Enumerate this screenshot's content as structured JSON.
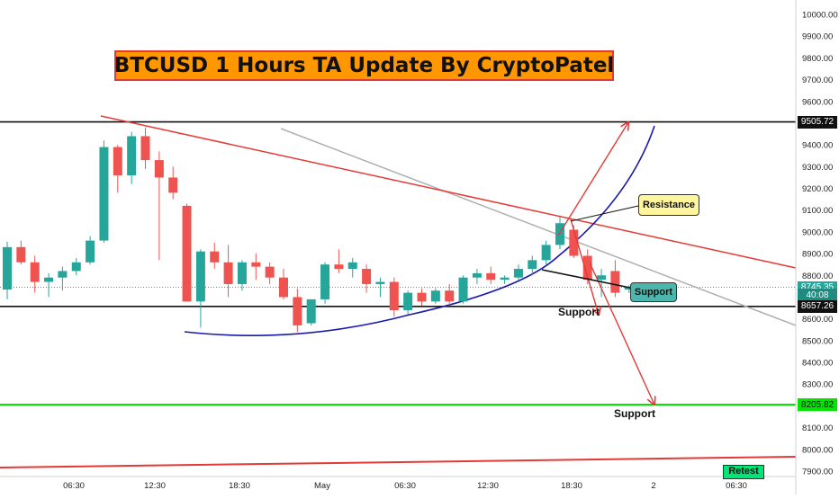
{
  "title": "BTCUSD 1 Hours TA Update By CryptoPatel",
  "annotations": {
    "resistance": "Resistance",
    "support_box": "Support",
    "support_upper": "Support",
    "support_lower": "Support",
    "retest": "Retest"
  },
  "colors": {
    "up": "#26a69a",
    "down": "#ef5350",
    "resistance_line": "#e53935",
    "curve": "#1a1aaa",
    "gray_line": "#b0b0b0",
    "support_green": "#00e600",
    "title_bg": "#ff9800"
  },
  "chart_data": {
    "type": "candlestick",
    "title": "BTCUSD 1 Hours TA Update By CryptoPatel",
    "x_tick_labels": [
      "06:30",
      "12:30",
      "18:30",
      "May",
      "06:30",
      "12:30",
      "18:30",
      "2",
      "06:30"
    ],
    "y_ticks": [
      7900,
      8000,
      8100,
      8200,
      8300,
      8400,
      8500,
      8600,
      8700,
      8800,
      8900,
      9000,
      9100,
      9200,
      9300,
      9400,
      9500,
      9600,
      9700,
      9800,
      9900,
      10000
    ],
    "y_tick_labels": [
      "7900.00",
      "8000.00",
      "8100.00",
      "8200.00",
      "8300.00",
      "8400.00",
      "8500.00",
      "8600.00",
      "8700.00",
      "8800.00",
      "8900.00",
      "9000.00",
      "9100.00",
      "9200.00",
      "9300.00",
      "9400.00",
      "9500.00",
      "9600.00",
      "9700.00",
      "9800.00",
      "9900.00",
      "10000.00"
    ],
    "ylim": [
      7880,
      10060
    ],
    "grid": false,
    "price_labels": [
      {
        "value": 9505.72,
        "text": "9505.72",
        "style": "black"
      },
      {
        "value": 8745.35,
        "text": "8745.35",
        "style": "teal"
      },
      {
        "value": 8710,
        "text": "40:08",
        "style": "teal-dark"
      },
      {
        "value": 8657.26,
        "text": "8657.26",
        "style": "black"
      },
      {
        "value": 8205.82,
        "text": "8205.82",
        "style": "green"
      }
    ],
    "horizontal_levels": [
      9505.72,
      8657.26,
      8205.82
    ],
    "current_price": 8745.35,
    "candles": [
      {
        "o": 8735,
        "h": 8955,
        "l": 8690,
        "c": 8930
      },
      {
        "o": 8930,
        "h": 8960,
        "l": 8850,
        "c": 8860
      },
      {
        "o": 8860,
        "h": 8890,
        "l": 8720,
        "c": 8770
      },
      {
        "o": 8770,
        "h": 8810,
        "l": 8700,
        "c": 8790
      },
      {
        "o": 8790,
        "h": 8840,
        "l": 8730,
        "c": 8820
      },
      {
        "o": 8820,
        "h": 8880,
        "l": 8800,
        "c": 8860
      },
      {
        "o": 8860,
        "h": 8980,
        "l": 8850,
        "c": 8960
      },
      {
        "o": 8960,
        "h": 9420,
        "l": 8950,
        "c": 9390
      },
      {
        "o": 9390,
        "h": 9400,
        "l": 9180,
        "c": 9260
      },
      {
        "o": 9260,
        "h": 9460,
        "l": 9220,
        "c": 9440
      },
      {
        "o": 9440,
        "h": 9480,
        "l": 9290,
        "c": 9330
      },
      {
        "o": 9330,
        "h": 9370,
        "l": 8870,
        "c": 9250
      },
      {
        "o": 9250,
        "h": 9300,
        "l": 9150,
        "c": 9180
      },
      {
        "o": 9120,
        "h": 9130,
        "l": 8680,
        "c": 8680
      },
      {
        "o": 8680,
        "h": 8920,
        "l": 8560,
        "c": 8910
      },
      {
        "o": 8910,
        "h": 8950,
        "l": 8830,
        "c": 8860
      },
      {
        "o": 8860,
        "h": 8940,
        "l": 8700,
        "c": 8760
      },
      {
        "o": 8760,
        "h": 8870,
        "l": 8730,
        "c": 8860
      },
      {
        "o": 8860,
        "h": 8900,
        "l": 8780,
        "c": 8840
      },
      {
        "o": 8840,
        "h": 8860,
        "l": 8760,
        "c": 8790
      },
      {
        "o": 8790,
        "h": 8830,
        "l": 8690,
        "c": 8700
      },
      {
        "o": 8700,
        "h": 8740,
        "l": 8540,
        "c": 8570
      },
      {
        "o": 8580,
        "h": 8690,
        "l": 8570,
        "c": 8690
      },
      {
        "o": 8690,
        "h": 8860,
        "l": 8670,
        "c": 8850
      },
      {
        "o": 8850,
        "h": 8920,
        "l": 8810,
        "c": 8830
      },
      {
        "o": 8830,
        "h": 8880,
        "l": 8790,
        "c": 8860
      },
      {
        "o": 8830,
        "h": 8850,
        "l": 8720,
        "c": 8760
      },
      {
        "o": 8760,
        "h": 8790,
        "l": 8700,
        "c": 8770
      },
      {
        "o": 8770,
        "h": 8790,
        "l": 8610,
        "c": 8640
      },
      {
        "o": 8640,
        "h": 8730,
        "l": 8620,
        "c": 8720
      },
      {
        "o": 8720,
        "h": 8740,
        "l": 8660,
        "c": 8680
      },
      {
        "o": 8680,
        "h": 8740,
        "l": 8670,
        "c": 8730
      },
      {
        "o": 8730,
        "h": 8760,
        "l": 8660,
        "c": 8680
      },
      {
        "o": 8680,
        "h": 8800,
        "l": 8670,
        "c": 8790
      },
      {
        "o": 8790,
        "h": 8830,
        "l": 8760,
        "c": 8810
      },
      {
        "o": 8810,
        "h": 8840,
        "l": 8760,
        "c": 8780
      },
      {
        "o": 8780,
        "h": 8800,
        "l": 8760,
        "c": 8790
      },
      {
        "o": 8790,
        "h": 8850,
        "l": 8780,
        "c": 8830
      },
      {
        "o": 8830,
        "h": 8890,
        "l": 8800,
        "c": 8870
      },
      {
        "o": 8870,
        "h": 8960,
        "l": 8850,
        "c": 8940
      },
      {
        "o": 8940,
        "h": 9070,
        "l": 8920,
        "c": 9040
      },
      {
        "o": 9010,
        "h": 9030,
        "l": 8880,
        "c": 8890
      },
      {
        "o": 8890,
        "h": 8920,
        "l": 8760,
        "c": 8780
      },
      {
        "o": 8780,
        "h": 8830,
        "l": 8700,
        "c": 8800
      },
      {
        "o": 8820,
        "h": 8870,
        "l": 8700,
        "c": 8720
      },
      {
        "o": 8735,
        "h": 8755,
        "l": 8720,
        "c": 8745
      }
    ]
  }
}
